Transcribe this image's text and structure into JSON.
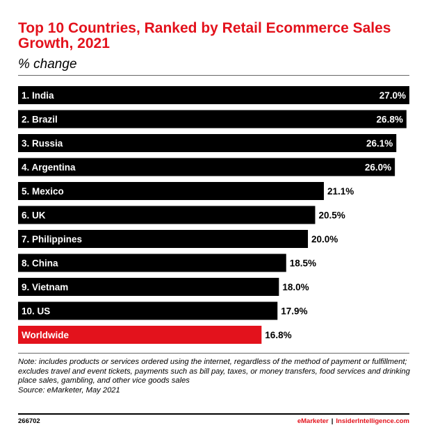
{
  "chart_data": {
    "type": "bar",
    "orientation": "horizontal",
    "title": "Top 10 Countries, Ranked by Retail Ecommerce Sales Growth, 2021",
    "subtitle": "% change",
    "categories": [
      "1. India",
      "2. Brazil",
      "3. Russia",
      "4. Argentina",
      "5. Mexico",
      "6. UK",
      "7. Philippines",
      "8. China",
      "9. Vietnam",
      "10. US",
      "Worldwide"
    ],
    "values": [
      27.0,
      26.8,
      26.1,
      26.0,
      21.1,
      20.5,
      20.0,
      18.5,
      18.0,
      17.9,
      16.8
    ],
    "value_labels": [
      "27.0%",
      "26.8%",
      "26.1%",
      "26.0%",
      "21.1%",
      "20.5%",
      "20.0%",
      "18.5%",
      "18.0%",
      "17.9%",
      "16.8%"
    ],
    "bar_colors": [
      "#000000",
      "#000000",
      "#000000",
      "#000000",
      "#000000",
      "#000000",
      "#000000",
      "#000000",
      "#000000",
      "#000000",
      "#e3121c"
    ],
    "xlim": [
      0,
      27.0
    ],
    "grid": false,
    "legend": "none"
  },
  "note": "Note: includes products or services ordered using the internet, regardless of the method of payment or fulfillment; excludes travel and event tickets, payments such as bill pay, taxes, or money transfers, food services and drinking place sales, gambling, and other vice goods sales",
  "source": "Source: eMarketer, May 2021",
  "footer": {
    "chart_id": "266702",
    "brand_a": "eMarketer",
    "separator": "|",
    "brand_b": "InsiderIntelligence.com"
  },
  "colors": {
    "accent": "#e3121c",
    "bar": "#000000",
    "bar_label": "#ffffff"
  }
}
